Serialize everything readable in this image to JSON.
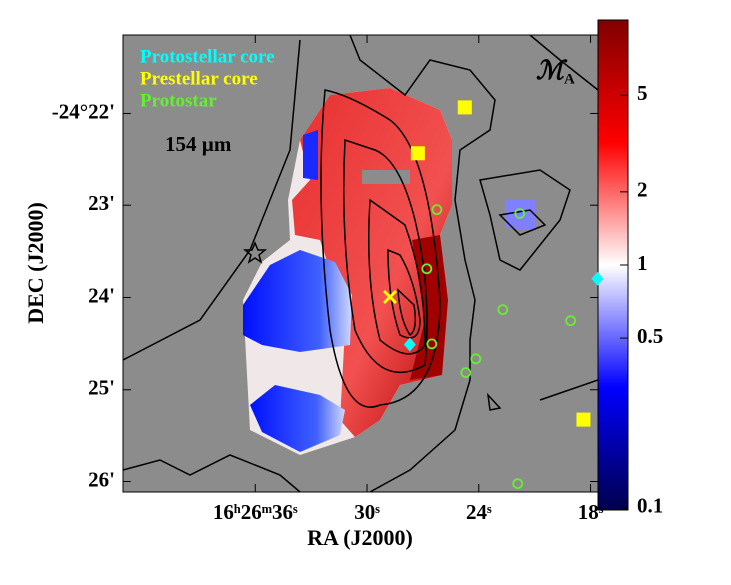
{
  "chart_data": {
    "type": "map",
    "annotation": "154 µm",
    "model_label": "ℳ",
    "model_subscript": "A",
    "x_label": "RA (J2000)",
    "y_label": "DEC (J2000)",
    "xlim": [
      43.1,
      17.6
    ],
    "xticks": [
      {
        "value": 36,
        "label": "16ʰ26ᵐ36ˢ"
      },
      {
        "value": 30,
        "label": "30ˢ"
      },
      {
        "value": 24,
        "label": "24ˢ"
      },
      {
        "value": 18,
        "label": "18ˢ"
      }
    ],
    "ylim": [
      -24.3525,
      -24.4352
    ],
    "yticks": [
      {
        "value": -24.3667,
        "label": "-24°22'"
      },
      {
        "value": -24.3833,
        "label": "23'"
      },
      {
        "value": -24.4,
        "label": "24'"
      },
      {
        "value": -24.4167,
        "label": "25'"
      },
      {
        "value": -24.4333,
        "label": "26'"
      }
    ],
    "colorbar": {
      "log": true,
      "lim": [
        0.098,
        10.2
      ],
      "ticks": [
        0.1,
        0.5,
        1,
        2,
        5
      ]
    },
    "grid": false,
    "series": [
      {
        "name": "Protostellar core",
        "color": "#00ffff",
        "marker": "diamond",
        "x": [
          27.7,
          17.63
        ],
        "values": [
          -24.4085,
          -24.3966
        ]
      },
      {
        "name": "Prestellar core",
        "color": "#ffff00",
        "marker": "square",
        "x": [
          24.75,
          27.27,
          18.38
        ],
        "values": [
          -24.3656,
          -24.3739,
          -24.4221
        ]
      },
      {
        "name": "Protostar",
        "color": "#66ee33",
        "marker": "circle",
        "x": [
          26.25,
          21.8,
          26.79,
          22.71,
          19.07,
          24.16,
          24.7,
          26.52,
          21.91
        ],
        "values": [
          -24.3841,
          -24.3848,
          -24.3948,
          -24.4022,
          -24.4042,
          -24.4111,
          -24.4136,
          -24.4084,
          -24.4337
        ]
      }
    ]
  }
}
